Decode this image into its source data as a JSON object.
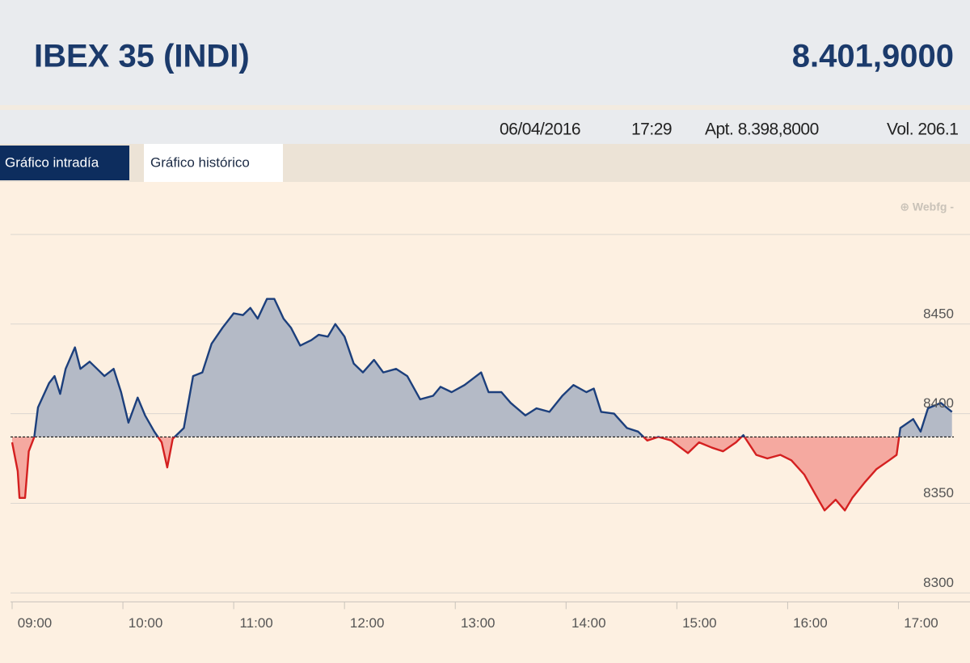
{
  "header": {
    "title": "IBEX 35 (INDI)",
    "price": "8.401,9000"
  },
  "info": {
    "date": "06/04/2016",
    "time": "17:29",
    "open": "Apt. 8.398,8000",
    "volume": "Vol. 206.1"
  },
  "tabs": [
    "Gráfico intradía",
    "Gráfico histórico"
  ],
  "watermark": "⊕ Webfg -",
  "chart_data": {
    "type": "line",
    "x": [
      "09:00",
      "09:03",
      "09:04",
      "09:07",
      "09:09",
      "09:12",
      "09:14",
      "09:20",
      "09:23",
      "09:26",
      "09:29",
      "09:34",
      "09:37",
      "09:42",
      "09:46",
      "09:50",
      "09:55",
      "09:59",
      "10:03",
      "10:08",
      "10:12",
      "10:17",
      "10:21",
      "10:24",
      "10:27",
      "10:33",
      "10:38",
      "10:43",
      "10:48",
      "10:54",
      "11:00",
      "11:05",
      "11:09",
      "11:13",
      "11:18",
      "11:22",
      "11:27",
      "11:31",
      "11:36",
      "11:42",
      "11:46",
      "11:51",
      "11:55",
      "12:00",
      "12:05",
      "12:10",
      "12:16",
      "12:21",
      "12:28",
      "12:34",
      "12:41",
      "12:48",
      "12:52",
      "12:58",
      "13:05",
      "13:14",
      "13:18",
      "13:25",
      "13:30",
      "13:38",
      "13:44",
      "13:51",
      "13:58",
      "14:04",
      "14:11",
      "14:15",
      "14:19",
      "14:26",
      "14:33",
      "14:39",
      "14:44",
      "14:50",
      "14:57",
      "15:06",
      "15:12",
      "15:19",
      "15:25",
      "15:32",
      "15:36",
      "15:43",
      "15:49",
      "15:56",
      "16:02",
      "16:09",
      "16:15",
      "16:20",
      "16:26",
      "16:31",
      "16:35",
      "16:42",
      "16:48",
      "16:55",
      "16:59",
      "17:01",
      "17:08",
      "17:12",
      "17:16",
      "17:23",
      "17:29"
    ],
    "series": [
      {
        "color": "#1c3f7c",
        "fill": "#b4bac6",
        "down_color": "#d42020",
        "down_fill": "#f5a9a0",
        "values": [
          8384,
          8368,
          8353,
          8353,
          8379,
          8387,
          8403.5,
          8417,
          8421,
          8411,
          8425,
          8437,
          8425,
          8429,
          8425,
          8421,
          8425,
          8412,
          8395,
          8409,
          8399,
          8390,
          8384,
          8370,
          8386,
          8392,
          8421,
          8423,
          8439,
          8448,
          8456,
          8455,
          8459,
          8453,
          8464,
          8464,
          8453,
          8448,
          8438,
          8441,
          8444,
          8443,
          8450,
          8443,
          8428,
          8423,
          8430,
          8423,
          8425,
          8421,
          8408,
          8410,
          8415,
          8412,
          8416,
          8423,
          8412,
          8412,
          8406,
          8399,
          8403,
          8401,
          8410,
          8416,
          8412,
          8414,
          8401,
          8400,
          8392,
          8390,
          8385,
          8387,
          8385,
          8378,
          8384,
          8381,
          8379,
          8384,
          8388,
          8377,
          8375,
          8377,
          8374,
          8366,
          8355,
          8346,
          8352,
          8346,
          8353,
          8362,
          8369,
          8374,
          8377,
          8392,
          8397,
          8390,
          8403,
          8406,
          8401
        ]
      }
    ],
    "reference": 8387,
    "xlim": [
      "09:00",
      "17:30"
    ],
    "xticks": [
      "09:00",
      "10:00",
      "11:00",
      "12:00",
      "13:00",
      "14:00",
      "15:00",
      "16:00",
      "17:00"
    ],
    "ylim": [
      8295,
      8520
    ],
    "yticks": [
      8300,
      8350,
      8400,
      8450
    ],
    "gridlines": [
      8300,
      8350,
      8400,
      8450,
      8500
    ]
  }
}
